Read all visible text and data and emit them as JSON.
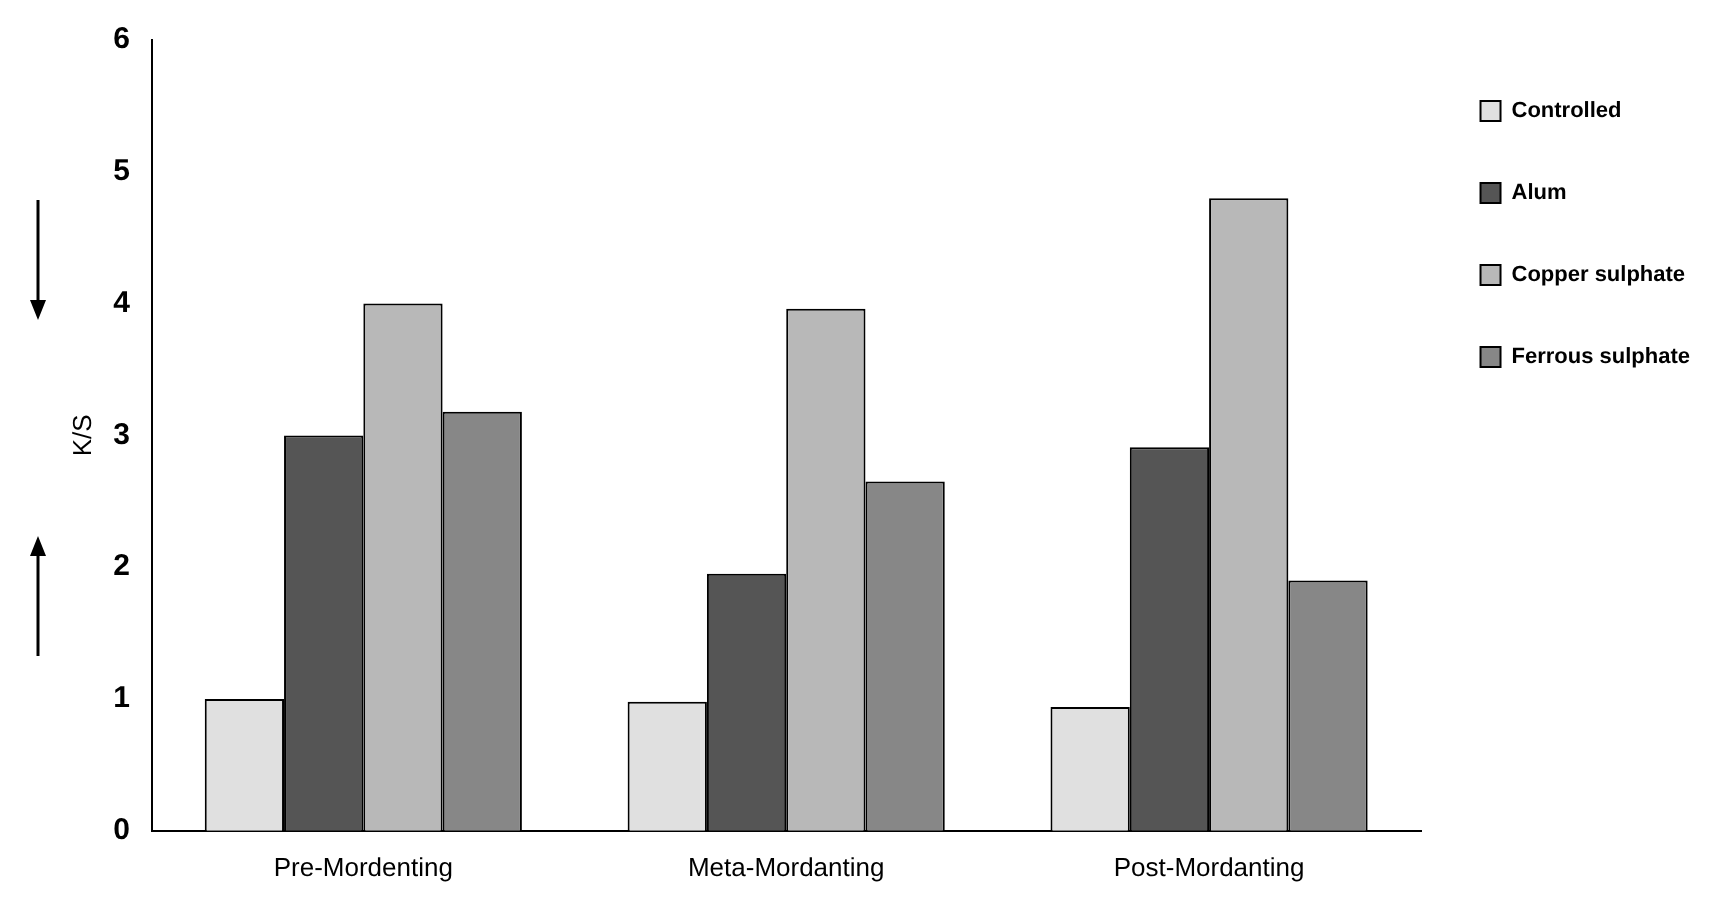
{
  "chart_data": {
    "type": "bar",
    "ylabel": "K/S",
    "categories": [
      "Pre-Mordenting",
      "Meta-Mordanting",
      "Post-Mordanting"
    ],
    "series": [
      {
        "name": "Controlled",
        "color": "#e0e0e0",
        "values": [
          1,
          0.98,
          0.94
        ]
      },
      {
        "name": "Alum",
        "color": "#555555",
        "values": [
          3,
          1.95,
          2.91
        ]
      },
      {
        "name": "Copper sulphate",
        "color": "#b8b8b8",
        "values": [
          4,
          3.96,
          4.8
        ]
      },
      {
        "name": "Ferrous sulphate",
        "color": "#878787",
        "values": [
          3.18,
          2.65,
          1.9
        ]
      }
    ],
    "ylim": [
      0,
      6
    ],
    "yticks": [
      0,
      1,
      2,
      3,
      4,
      5,
      6
    ],
    "grid": false,
    "legend": "right"
  }
}
